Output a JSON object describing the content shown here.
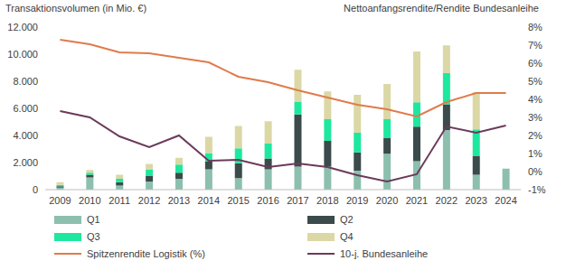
{
  "chart_data": {
    "type": "bar",
    "stacked": true,
    "grid": false,
    "legend": "bottom",
    "y_label": "Transaktionsvolumen (in Mio. €)",
    "y2_label": "Nettoanfangsrendite/Rendite Bundesanleihe",
    "categories": [
      "2009",
      "2010",
      "2011",
      "2012",
      "2013",
      "2014",
      "2015",
      "2016",
      "2017",
      "2018",
      "2019",
      "2020",
      "2021",
      "2022",
      "2023",
      "2024"
    ],
    "ylim": [
      0,
      12000
    ],
    "yticks": [
      0,
      {
        "value": 2000,
        "label": "2.000"
      },
      {
        "value": 4000,
        "label": "4.000"
      },
      {
        "value": 6000,
        "label": "6.000"
      },
      {
        "value": 8000,
        "label": "8.000"
      },
      {
        "value": 10000,
        "label": "10.000"
      },
      {
        "value": 12000,
        "label": "12.000"
      }
    ],
    "y2lim": [
      -1,
      8
    ],
    "y2ticks": [
      {
        "value": -1,
        "label": "-1%"
      },
      {
        "value": 0,
        "label": "0%"
      },
      {
        "value": 1,
        "label": "1%"
      },
      {
        "value": 2,
        "label": "2%"
      },
      {
        "value": 3,
        "label": "3%"
      },
      {
        "value": 4,
        "label": "4%"
      },
      {
        "value": 5,
        "label": "5%"
      },
      {
        "value": 6,
        "label": "6%"
      },
      {
        "value": 7,
        "label": "7%"
      },
      {
        "value": 8,
        "label": "8%"
      }
    ],
    "series": [
      {
        "name": "Q1",
        "type": "bar",
        "color": "#8cbfae",
        "values": [
          150,
          900,
          300,
          600,
          800,
          1500,
          850,
          1500,
          1700,
          1700,
          1400,
          2650,
          2100,
          4400,
          1100,
          1550
        ]
      },
      {
        "name": "Q2",
        "type": "bar",
        "color": "#3b4a4a",
        "values": [
          100,
          200,
          250,
          400,
          450,
          600,
          1100,
          800,
          3850,
          1900,
          1350,
          1150,
          2550,
          1900,
          1400,
          null
        ]
      },
      {
        "name": "Q3",
        "type": "bar",
        "color": "#1ee89f",
        "values": [
          100,
          150,
          250,
          500,
          600,
          600,
          1100,
          1100,
          950,
          1600,
          1450,
          1400,
          1800,
          2300,
          1950,
          null
        ]
      },
      {
        "name": "Q4",
        "type": "bar",
        "color": "#dbd8a6",
        "values": [
          200,
          200,
          300,
          400,
          500,
          1200,
          1650,
          1650,
          2350,
          2050,
          2800,
          2600,
          3750,
          2050,
          2750,
          null
        ]
      },
      {
        "name": "Spitzenrendite Logistik (%)",
        "type": "line",
        "axis": "y2",
        "color": "#e07b4b",
        "values": [
          7.3,
          7.05,
          6.6,
          6.55,
          6.3,
          6.05,
          5.25,
          4.95,
          4.5,
          4.1,
          3.7,
          3.45,
          3.05,
          3.85,
          4.35,
          4.35
        ]
      },
      {
        "name": "10-j. Bundesanleihe",
        "type": "line",
        "axis": "y2",
        "color": "#6b3a5a",
        "values": [
          3.35,
          3.0,
          1.95,
          1.35,
          2.0,
          0.6,
          0.65,
          0.25,
          0.45,
          0.25,
          -0.2,
          -0.55,
          -0.15,
          2.5,
          2.15,
          2.55
        ]
      }
    ]
  }
}
